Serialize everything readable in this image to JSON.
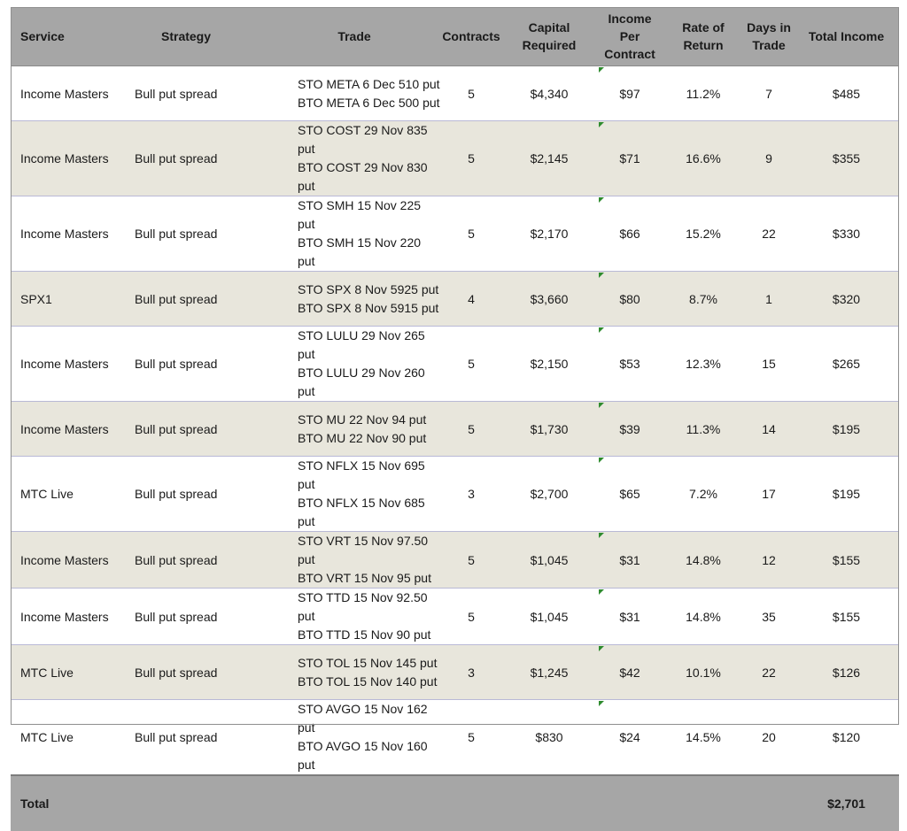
{
  "columns": {
    "service": "Service",
    "strategy": "Strategy",
    "trade": "Trade",
    "contracts": "Contracts",
    "capital_1": "Capital",
    "capital_2": "Required",
    "income_1": "Income Per",
    "income_2": "Contract",
    "rate_1": "Rate of",
    "rate_2": "Return",
    "days_1": "Days in",
    "days_2": "Trade",
    "total_income": "Total Income"
  },
  "rows": [
    {
      "service": "Income Masters",
      "strategy": "Bull put spread",
      "trade_sto": "STO META 6 Dec 510 put",
      "trade_bto": "BTO META 6 Dec 500 put",
      "contracts": "5",
      "capital": "$4,340",
      "income": "$97",
      "rate": "11.2%",
      "days": "7",
      "total": "$485"
    },
    {
      "service": "Income Masters",
      "strategy": "Bull put spread",
      "trade_sto": "STO COST 29 Nov 835 put",
      "trade_bto": "BTO COST 29 Nov 830 put",
      "contracts": "5",
      "capital": "$2,145",
      "income": "$71",
      "rate": "16.6%",
      "days": "9",
      "total": "$355"
    },
    {
      "service": "Income Masters",
      "strategy": "Bull put spread",
      "trade_sto": "STO SMH 15 Nov 225 put",
      "trade_bto": "BTO SMH 15 Nov 220 put",
      "contracts": "5",
      "capital": "$2,170",
      "income": "$66",
      "rate": "15.2%",
      "days": "22",
      "total": "$330"
    },
    {
      "service": "SPX1",
      "strategy": "Bull put spread",
      "trade_sto": "STO SPX 8 Nov 5925 put",
      "trade_bto": "BTO SPX 8 Nov 5915 put",
      "contracts": "4",
      "capital": "$3,660",
      "income": "$80",
      "rate": "8.7%",
      "days": "1",
      "total": "$320"
    },
    {
      "service": "Income Masters",
      "strategy": "Bull put spread",
      "trade_sto": "STO LULU 29 Nov 265 put",
      "trade_bto": "BTO LULU 29 Nov 260 put",
      "contracts": "5",
      "capital": "$2,150",
      "income": "$53",
      "rate": "12.3%",
      "days": "15",
      "total": "$265"
    },
    {
      "service": "Income Masters",
      "strategy": "Bull put spread",
      "trade_sto": "STO MU 22 Nov 94 put",
      "trade_bto": "BTO MU 22 Nov 90 put",
      "contracts": "5",
      "capital": "$1,730",
      "income": "$39",
      "rate": "11.3%",
      "days": "14",
      "total": "$195"
    },
    {
      "service": "MTC Live",
      "strategy": "Bull put spread",
      "trade_sto": "STO NFLX 15 Nov 695 put",
      "trade_bto": "BTO NFLX 15 Nov 685 put",
      "contracts": "3",
      "capital": "$2,700",
      "income": "$65",
      "rate": "7.2%",
      "days": "17",
      "total": "$195"
    },
    {
      "service": "Income Masters",
      "strategy": "Bull put spread",
      "trade_sto": "STO VRT 15 Nov 97.50 put",
      "trade_bto": "BTO VRT 15 Nov 95 put",
      "contracts": "5",
      "capital": "$1,045",
      "income": "$31",
      "rate": "14.8%",
      "days": "12",
      "total": "$155"
    },
    {
      "service": "Income Masters",
      "strategy": "Bull put spread",
      "trade_sto": "STO TTD 15 Nov 92.50 put",
      "trade_bto": "BTO TTD 15 Nov 90 put",
      "contracts": "5",
      "capital": "$1,045",
      "income": "$31",
      "rate": "14.8%",
      "days": "35",
      "total": "$155"
    },
    {
      "service": "MTC Live",
      "strategy": "Bull put spread",
      "trade_sto": "STO TOL 15 Nov 145 put",
      "trade_bto": "BTO TOL 15 Nov 140 put",
      "contracts": "3",
      "capital": "$1,245",
      "income": "$42",
      "rate": "10.1%",
      "days": "22",
      "total": "$126"
    },
    {
      "service": "MTC Live",
      "strategy": "Bull put spread",
      "trade_sto": "STO AVGO 15 Nov 162 put",
      "trade_bto": "BTO AVGO 15 Nov 160 put",
      "contracts": "5",
      "capital": "$830",
      "income": "$24",
      "rate": "14.5%",
      "days": "20",
      "total": "$120"
    }
  ],
  "footer": {
    "label": "Total",
    "total_income": "$2,701"
  },
  "colors": {
    "header_bg": "#a6a6a6",
    "stripe_bg": "#e8e6dc",
    "comment_marker": "#2e8b2e"
  }
}
